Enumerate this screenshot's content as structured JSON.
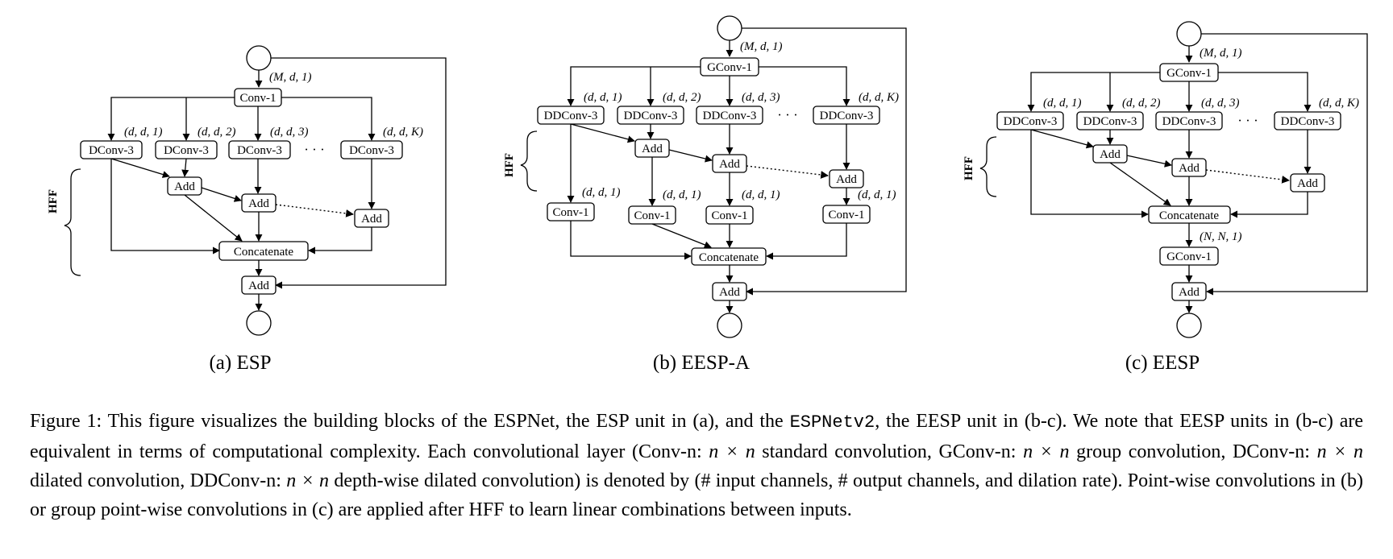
{
  "panels": {
    "a": {
      "title": "(a) ESP",
      "input_ann": "(M, d, 1)",
      "first": "Conv-1",
      "branch_label": "DConv-3",
      "branch_anns": [
        "(d, d, 1)",
        "(d, d, 2)",
        "(d, d, 3)",
        "(d, d, K)"
      ],
      "ellipsis": "· · ·",
      "add": "Add",
      "concat": "Concatenate",
      "hff": "HFF"
    },
    "b": {
      "title": "(b) EESP-A",
      "input_ann": "(M, d, 1)",
      "first": "GConv-1",
      "branch_label": "DDConv-3",
      "branch_anns": [
        "(d, d, 1)",
        "(d, d, 2)",
        "(d, d, 3)",
        "(d, d, K)"
      ],
      "conv_label": "Conv-1",
      "conv_anns": [
        "(d, d, 1)",
        "(d, d, 1)",
        "(d, d, 1)",
        "(d, d, 1)"
      ],
      "ellipsis": "· · ·",
      "add": "Add",
      "concat": "Concatenate",
      "hff": "HFF"
    },
    "c": {
      "title": "(c) EESP",
      "input_ann": "(M, d, 1)",
      "first": "GConv-1",
      "branch_label": "DDConv-3",
      "branch_anns": [
        "(d, d, 1)",
        "(d, d, 2)",
        "(d, d, 3)",
        "(d, d, K)"
      ],
      "ellipsis": "· · ·",
      "add": "Add",
      "concat": "Concatenate",
      "post_ann": "(N, N, 1)",
      "post": "GConv-1",
      "hff": "HFF"
    }
  },
  "caption": {
    "p1": "Figure 1: This figure visualizes the building blocks of the ESPNet, the ESP unit in (a), and the ",
    "mono": "ESPNetv2",
    "p2": ", the EESP unit in (b-c). We note that EESP units in (b-c) are equivalent in terms of computational complexity. Each convolutional layer (Conv-n: ",
    "m1": "n × n",
    "p3": " standard convolution, GConv-n: ",
    "m2": "n × n",
    "p4": " group convolution, DConv-n: ",
    "m3": "n × n",
    "p5": " dilated convolution, DDConv-n: ",
    "m4": "n × n",
    "p6": " depth-wise dilated convolution) is denoted by (# input channels, # output channels, and dilation rate). Point-wise convolutions in (b) or group point-wise convolutions in (c) are applied after HFF to learn linear combinations between inputs."
  }
}
